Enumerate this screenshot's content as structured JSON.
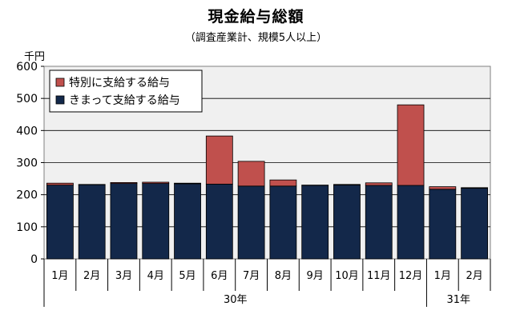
{
  "chart_data": {
    "type": "bar",
    "stacked": true,
    "title": "現金給与総額",
    "subtitle": "（調査産業計、規模5人以上）",
    "ylabel": "千円",
    "ylim": [
      0,
      600
    ],
    "yticks": [
      0,
      100,
      200,
      300,
      400,
      500,
      600
    ],
    "grid": true,
    "legend_position": "top-left",
    "categories": [
      "1月",
      "2月",
      "3月",
      "4月",
      "5月",
      "6月",
      "7月",
      "8月",
      "9月",
      "10月",
      "11月",
      "12月",
      "1月",
      "2月"
    ],
    "year_groups": [
      {
        "label": "30年",
        "count": 12
      },
      {
        "label": "31年",
        "count": 2
      }
    ],
    "series": [
      {
        "name": "きまって支給する給与",
        "color": "#13284a",
        "values": [
          230,
          231,
          235,
          235,
          234,
          233,
          227,
          227,
          229,
          230,
          229,
          229,
          217,
          220
        ]
      },
      {
        "name": "特別に支給する給与",
        "color": "#c0504d",
        "values": [
          6,
          1,
          3,
          4,
          2,
          150,
          77,
          19,
          1,
          2,
          8,
          251,
          8,
          2
        ]
      }
    ]
  }
}
